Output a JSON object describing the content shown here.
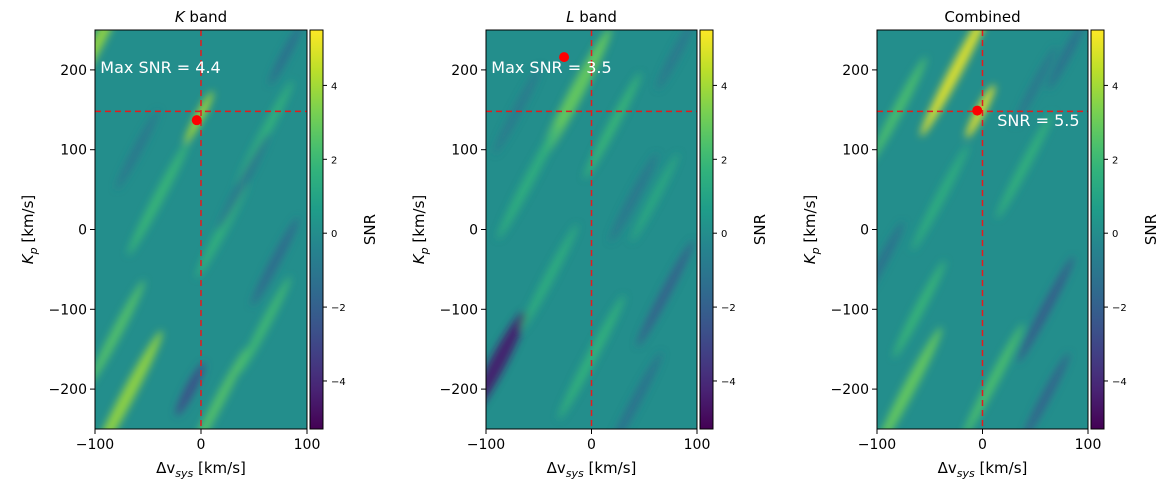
{
  "chart_data": [
    {
      "type": "heatmap",
      "title_sym": "K",
      "title_rest": " band",
      "xlabel_pre": "Δv",
      "xlabel_sub": "sys",
      "xlabel_post": " [km/s]",
      "ylabel_pre": "K",
      "ylabel_sub": "p",
      "ylabel_post": " [km/s]",
      "xlim": [
        -100,
        100
      ],
      "ylim": [
        -250,
        250
      ],
      "xticks": [
        -100,
        0,
        100
      ],
      "yticks": [
        -200,
        -100,
        0,
        100,
        200
      ],
      "colorbar_label": "SNR",
      "colorbar_range": [
        -5.3,
        5.5
      ],
      "colorbar_ticks": [
        -4,
        -2,
        0,
        2,
        4
      ],
      "crosshair": {
        "x": 0,
        "y": 148
      },
      "marker": {
        "x": -4,
        "y": 137
      },
      "annotation": {
        "text": "Max SNR = 4.4",
        "x": -95,
        "y": 196
      },
      "features": [
        {
          "x": -100,
          "y": 228,
          "ang": -62,
          "len": 120,
          "wid": 12,
          "v": 3.8
        },
        {
          "x": -2,
          "y": 140,
          "ang": -62,
          "len": 60,
          "wid": 8,
          "v": 4.2
        },
        {
          "x": -40,
          "y": 40,
          "ang": -62,
          "len": 130,
          "wid": 10,
          "v": 2.0
        },
        {
          "x": 20,
          "y": 0,
          "ang": -62,
          "len": 110,
          "wid": 9,
          "v": 1.8
        },
        {
          "x": 60,
          "y": 120,
          "ang": -62,
          "len": 120,
          "wid": 9,
          "v": 1.8
        },
        {
          "x": 80,
          "y": 220,
          "ang": -62,
          "len": 70,
          "wid": 8,
          "v": -1.5
        },
        {
          "x": -70,
          "y": -210,
          "ang": -62,
          "len": 150,
          "wid": 13,
          "v": 3.8
        },
        {
          "x": 15,
          "y": -220,
          "ang": -62,
          "len": 130,
          "wid": 10,
          "v": 2.6
        },
        {
          "x": -10,
          "y": -200,
          "ang": -62,
          "len": 60,
          "wid": 10,
          "v": -2.8
        },
        {
          "x": -80,
          "y": -130,
          "ang": -62,
          "len": 120,
          "wid": 10,
          "v": 2.6
        },
        {
          "x": 60,
          "y": -120,
          "ang": -62,
          "len": 110,
          "wid": 9,
          "v": 2.2
        },
        {
          "x": 70,
          "y": -40,
          "ang": -62,
          "len": 100,
          "wid": 9,
          "v": -1.8
        },
        {
          "x": -60,
          "y": 100,
          "ang": -62,
          "len": 90,
          "wid": 8,
          "v": -1.2
        },
        {
          "x": 40,
          "y": 60,
          "ang": -62,
          "len": 110,
          "wid": 8,
          "v": -1.3
        }
      ]
    },
    {
      "type": "heatmap",
      "title_sym": "L",
      "title_rest": " band",
      "xlabel_pre": "Δv",
      "xlabel_sub": "sys",
      "xlabel_post": " [km/s]",
      "ylabel_pre": "K",
      "ylabel_sub": "p",
      "ylabel_post": " [km/s]",
      "xlim": [
        -100,
        100
      ],
      "ylim": [
        -250,
        250
      ],
      "xticks": [
        -100,
        0,
        100
      ],
      "yticks": [
        -200,
        -100,
        0,
        100,
        200
      ],
      "colorbar_label": "SNR",
      "colorbar_range": [
        -5.3,
        5.5
      ],
      "colorbar_ticks": [
        -4,
        -2,
        0,
        2,
        4
      ],
      "crosshair": {
        "x": 0,
        "y": 148
      },
      "marker": {
        "x": -26,
        "y": 216
      },
      "annotation": {
        "text": "Max SNR = 3.5",
        "x": -95,
        "y": 196
      },
      "features": [
        {
          "x": -15,
          "y": 170,
          "ang": -62,
          "len": 150,
          "wid": 14,
          "v": 3.0
        },
        {
          "x": 20,
          "y": 130,
          "ang": -62,
          "len": 120,
          "wid": 9,
          "v": 2.0
        },
        {
          "x": -60,
          "y": 60,
          "ang": -62,
          "len": 130,
          "wid": 10,
          "v": 1.6
        },
        {
          "x": 40,
          "y": 40,
          "ang": -62,
          "len": 100,
          "wid": 9,
          "v": -1.2
        },
        {
          "x": 80,
          "y": 220,
          "ang": -62,
          "len": 80,
          "wid": 9,
          "v": -1.0
        },
        {
          "x": -90,
          "y": -170,
          "ang": -62,
          "len": 120,
          "wid": 16,
          "v": -4.5
        },
        {
          "x": 0,
          "y": -160,
          "ang": -62,
          "len": 140,
          "wid": 10,
          "v": 1.8
        },
        {
          "x": 70,
          "y": -80,
          "ang": -62,
          "len": 120,
          "wid": 9,
          "v": -2.2
        },
        {
          "x": -40,
          "y": -60,
          "ang": -62,
          "len": 120,
          "wid": 9,
          "v": 1.6
        },
        {
          "x": 40,
          "y": -220,
          "ang": -62,
          "len": 120,
          "wid": 9,
          "v": -1.4
        },
        {
          "x": -70,
          "y": 150,
          "ang": -62,
          "len": 100,
          "wid": 8,
          "v": -1.0
        },
        {
          "x": 60,
          "y": 40,
          "ang": -62,
          "len": 100,
          "wid": 8,
          "v": 1.4
        }
      ]
    },
    {
      "type": "heatmap",
      "title_sym": "",
      "title_rest": "Combined",
      "xlabel_pre": "Δv",
      "xlabel_sub": "sys",
      "xlabel_post": " [km/s]",
      "ylabel_pre": "K",
      "ylabel_sub": "p",
      "ylabel_post": " [km/s]",
      "xlim": [
        -100,
        100
      ],
      "ylim": [
        -250,
        250
      ],
      "xticks": [
        -100,
        0,
        100
      ],
      "yticks": [
        -200,
        -100,
        0,
        100,
        200
      ],
      "colorbar_label": "SNR",
      "colorbar_range": [
        -5.3,
        5.5
      ],
      "colorbar_ticks": [
        -4,
        -2,
        0,
        2,
        4
      ],
      "crosshair": {
        "x": 0,
        "y": 148
      },
      "marker": {
        "x": -5,
        "y": 149
      },
      "annotation": {
        "text": "SNR = 5.5",
        "x": 14,
        "y": 130
      },
      "features": [
        {
          "x": -25,
          "y": 200,
          "ang": -62,
          "len": 150,
          "wid": 12,
          "v": 5.2
        },
        {
          "x": -2,
          "y": 148,
          "ang": -62,
          "len": 60,
          "wid": 9,
          "v": 5.3
        },
        {
          "x": -80,
          "y": 150,
          "ang": -62,
          "len": 120,
          "wid": 10,
          "v": 2.4
        },
        {
          "x": 40,
          "y": 80,
          "ang": -62,
          "len": 120,
          "wid": 9,
          "v": 1.8
        },
        {
          "x": -40,
          "y": 40,
          "ang": -62,
          "len": 120,
          "wid": 9,
          "v": 1.6
        },
        {
          "x": 80,
          "y": 220,
          "ang": -62,
          "len": 80,
          "wid": 9,
          "v": -1.4
        },
        {
          "x": -70,
          "y": -200,
          "ang": -62,
          "len": 140,
          "wid": 12,
          "v": 3.0
        },
        {
          "x": 10,
          "y": -190,
          "ang": -62,
          "len": 130,
          "wid": 10,
          "v": 2.4
        },
        {
          "x": 60,
          "y": -100,
          "ang": -62,
          "len": 120,
          "wid": 9,
          "v": -2.4
        },
        {
          "x": -60,
          "y": -100,
          "ang": -62,
          "len": 110,
          "wid": 9,
          "v": 2.0
        },
        {
          "x": 60,
          "y": -210,
          "ang": -62,
          "len": 100,
          "wid": 9,
          "v": -2.0
        },
        {
          "x": -95,
          "y": -40,
          "ang": -62,
          "len": 90,
          "wid": 9,
          "v": -1.4
        },
        {
          "x": 50,
          "y": 180,
          "ang": -62,
          "len": 90,
          "wid": 8,
          "v": -1.2
        }
      ]
    }
  ]
}
